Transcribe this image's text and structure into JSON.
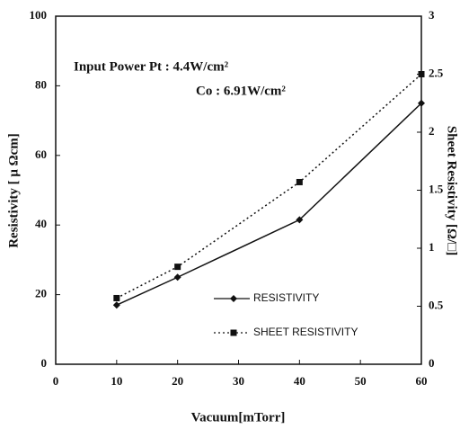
{
  "chart_data": {
    "type": "line",
    "x": [
      10,
      20,
      40,
      60
    ],
    "xlim": [
      0,
      60
    ],
    "xticks": [
      0,
      10,
      20,
      30,
      40,
      50,
      60
    ],
    "ylim": [
      0,
      100
    ],
    "yticks": [
      0,
      20,
      40,
      60,
      80,
      100
    ],
    "y2lim": [
      0,
      3
    ],
    "y2ticks": [
      0,
      0.5,
      1,
      1.5,
      2,
      2.5,
      3
    ],
    "xlabel": "Vacuum[mTorr]",
    "ylabel": "Resistivity [ μ Ωcm]",
    "y2label": "Sheet Resistivity [Ω/□]",
    "annotations": [
      "Input Power  Pt : 4.4W/cm²",
      "Co : 6.91W/cm²"
    ],
    "legend": "lower right",
    "grid": false,
    "series": [
      {
        "name": "RESISTIVITY",
        "color": "#111111",
        "dash": "solid",
        "marker": "diamond",
        "values": [
          17,
          25,
          41.5,
          75
        ]
      },
      {
        "name": "SHEET RESISTIVITY",
        "color": "#111111",
        "dash": "dotted",
        "marker": "square",
        "axis": "y2",
        "values": [
          0.57,
          0.84,
          1.57,
          2.5
        ]
      }
    ]
  }
}
